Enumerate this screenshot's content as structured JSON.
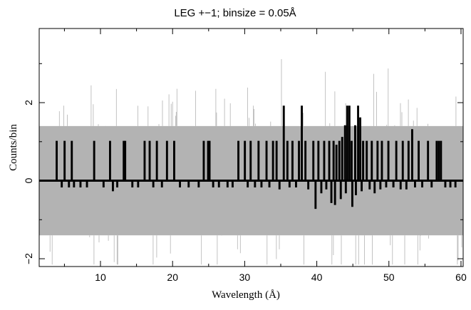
{
  "chart_data": {
    "type": "line",
    "title": "LEG +−1; binsize = 0.05Å",
    "xlabel": "Wavelength (Å)",
    "ylabel": "Counts/bin",
    "xlim": [
      1.5,
      60.3
    ],
    "ylim": [
      -2.2,
      3.9
    ],
    "x_ticks": [
      10,
      20,
      30,
      40,
      50,
      60
    ],
    "x_tick_labels": [
      "10",
      "20",
      "30",
      "40",
      "50",
      "60"
    ],
    "y_ticks": [
      -2,
      0,
      2
    ],
    "y_tick_labels": [
      "−2",
      "0",
      "2"
    ],
    "grid": false,
    "legend": "none",
    "binsize": 0.05,
    "error_band": {
      "color": "#b3b3b3",
      "lower": -1.4,
      "upper": 1.4
    },
    "series": [
      {
        "style": "step",
        "color": "#000000",
        "baseline": 0,
        "events": [
          [
            3.9,
            1.0
          ],
          [
            5.0,
            1.0
          ],
          [
            6.0,
            1.0
          ],
          [
            9.1,
            1.0
          ],
          [
            11.3,
            1.0
          ],
          [
            13.2,
            1.0
          ],
          [
            13.4,
            1.0
          ],
          [
            16.1,
            1.0
          ],
          [
            16.8,
            1.0
          ],
          [
            17.8,
            1.0
          ],
          [
            19.2,
            1.0
          ],
          [
            20.2,
            1.0
          ],
          [
            24.3,
            1.0
          ],
          [
            24.9,
            1.0
          ],
          [
            25.1,
            1.0
          ],
          [
            29.1,
            1.0
          ],
          [
            30.0,
            1.0
          ],
          [
            30.8,
            1.0
          ],
          [
            31.9,
            1.0
          ],
          [
            33.0,
            1.0
          ],
          [
            33.9,
            1.0
          ],
          [
            34.4,
            1.0
          ],
          [
            35.4,
            1.9
          ],
          [
            35.9,
            1.0
          ],
          [
            36.6,
            1.0
          ],
          [
            37.5,
            1.0
          ],
          [
            37.9,
            1.9
          ],
          [
            38.4,
            1.0
          ],
          [
            39.5,
            1.0
          ],
          [
            40.2,
            1.0
          ],
          [
            41.0,
            1.0
          ],
          [
            41.7,
            1.0
          ],
          [
            42.3,
            1.0
          ],
          [
            42.7,
            0.9
          ],
          [
            43.1,
            1.0
          ],
          [
            43.5,
            1.1
          ],
          [
            43.9,
            1.4
          ],
          [
            44.2,
            1.9
          ],
          [
            44.5,
            1.9
          ],
          [
            44.8,
            1.0
          ],
          [
            45.3,
            1.4
          ],
          [
            45.7,
            1.9
          ],
          [
            46.0,
            1.6
          ],
          [
            46.4,
            1.0
          ],
          [
            46.9,
            1.0
          ],
          [
            47.6,
            1.0
          ],
          [
            48.4,
            1.0
          ],
          [
            49.0,
            1.0
          ],
          [
            49.9,
            1.0
          ],
          [
            51.0,
            1.0
          ],
          [
            51.9,
            1.0
          ],
          [
            52.7,
            1.0
          ],
          [
            53.2,
            1.3
          ],
          [
            54.1,
            1.0
          ],
          [
            55.4,
            1.0
          ],
          [
            56.6,
            1.0
          ],
          [
            56.9,
            1.0
          ],
          [
            57.2,
            1.0
          ],
          [
            4.6,
            -0.15
          ],
          [
            5.6,
            -0.15
          ],
          [
            6.3,
            -0.15
          ],
          [
            7.2,
            -0.15
          ],
          [
            8.1,
            -0.15
          ],
          [
            10.4,
            -0.15
          ],
          [
            11.7,
            -0.25
          ],
          [
            12.3,
            -0.15
          ],
          [
            14.4,
            -0.15
          ],
          [
            15.2,
            -0.15
          ],
          [
            17.3,
            -0.15
          ],
          [
            18.5,
            -0.15
          ],
          [
            21.0,
            -0.15
          ],
          [
            22.2,
            -0.15
          ],
          [
            23.6,
            -0.15
          ],
          [
            25.6,
            -0.15
          ],
          [
            26.4,
            -0.15
          ],
          [
            27.6,
            -0.15
          ],
          [
            28.3,
            -0.15
          ],
          [
            30.4,
            -0.15
          ],
          [
            31.4,
            -0.15
          ],
          [
            32.3,
            -0.15
          ],
          [
            33.4,
            -0.15
          ],
          [
            34.8,
            -0.2
          ],
          [
            36.2,
            -0.15
          ],
          [
            37.1,
            -0.15
          ],
          [
            38.8,
            -0.2
          ],
          [
            39.8,
            -0.7
          ],
          [
            40.6,
            -0.3
          ],
          [
            41.3,
            -0.2
          ],
          [
            42.0,
            -0.55
          ],
          [
            42.5,
            -0.6
          ],
          [
            43.3,
            -0.45
          ],
          [
            44.0,
            -0.3
          ],
          [
            44.9,
            -0.65
          ],
          [
            45.4,
            -0.35
          ],
          [
            46.2,
            -0.25
          ],
          [
            47.3,
            -0.2
          ],
          [
            48.0,
            -0.3
          ],
          [
            48.8,
            -0.2
          ],
          [
            49.6,
            -0.15
          ],
          [
            50.6,
            -0.15
          ],
          [
            51.6,
            -0.2
          ],
          [
            52.4,
            -0.2
          ],
          [
            53.6,
            -0.15
          ],
          [
            54.6,
            -0.15
          ],
          [
            55.9,
            -0.15
          ],
          [
            57.8,
            -0.15
          ],
          [
            58.5,
            -0.15
          ],
          [
            59.2,
            -0.15
          ]
        ]
      }
    ]
  }
}
